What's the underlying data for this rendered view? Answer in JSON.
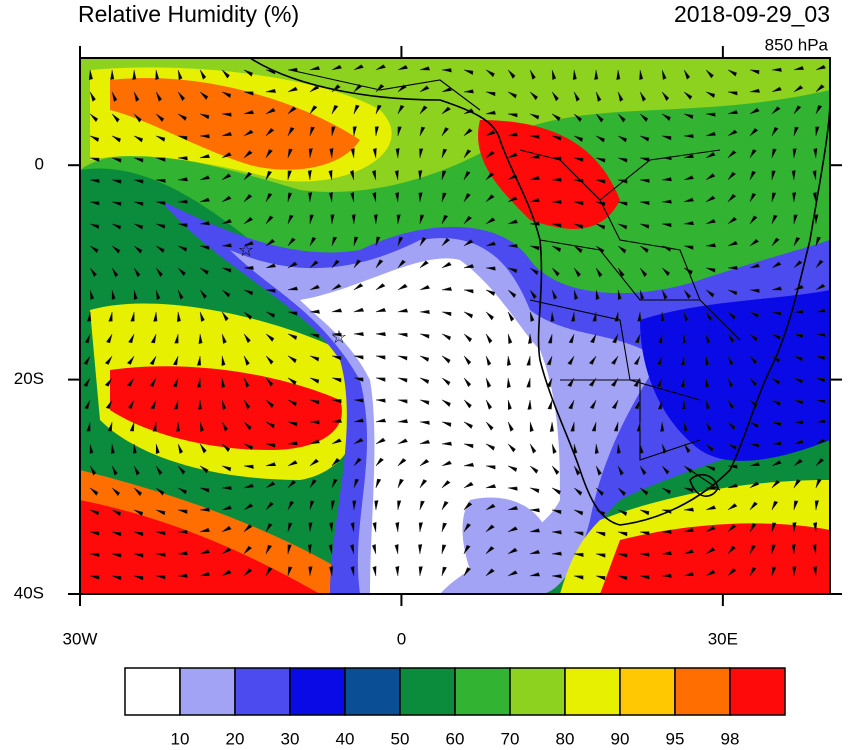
{
  "header": {
    "title": "Relative Humidity (%)",
    "datetime": "2018-09-29_03",
    "level": "850 hPa"
  },
  "map": {
    "lon_range": [
      -30,
      40
    ],
    "lat_range": [
      -40,
      10
    ],
    "lon_ticks": [
      {
        "value": -30,
        "label": "30W"
      },
      {
        "value": 0,
        "label": "0"
      },
      {
        "value": 30,
        "label": "30E"
      }
    ],
    "lat_ticks": [
      {
        "value": 0,
        "label": "0"
      },
      {
        "value": -20,
        "label": "20S"
      },
      {
        "value": -40,
        "label": "40S"
      }
    ]
  },
  "colorbar": {
    "levels": [
      10,
      20,
      30,
      40,
      50,
      60,
      70,
      80,
      90,
      95,
      98
    ],
    "colors": [
      "#ffffff",
      "#a3a3f5",
      "#4b4bf0",
      "#0a0ae6",
      "#0a4f96",
      "#0a8c3c",
      "#32b432",
      "#8cd21e",
      "#e6f000",
      "#ffc800",
      "#ff6e00",
      "#ff0a0a"
    ]
  }
}
